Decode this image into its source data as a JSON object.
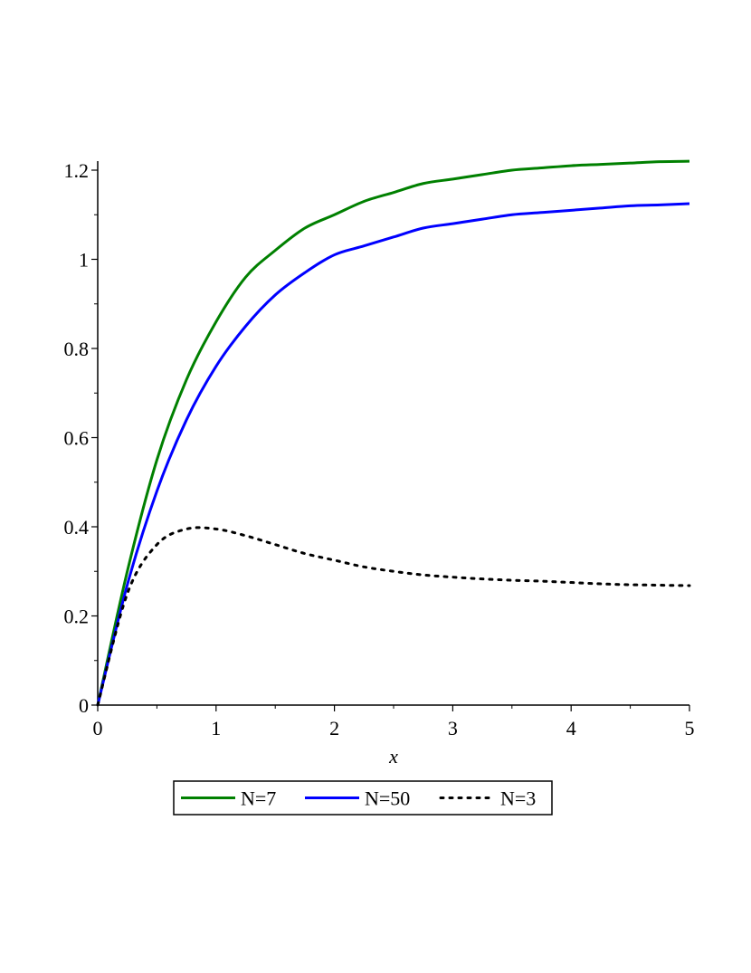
{
  "chart_data": {
    "type": "line",
    "title": "",
    "xlabel": "x",
    "ylabel": "",
    "xlim": [
      0,
      5
    ],
    "ylim": [
      0,
      1.2
    ],
    "x_ticks": [
      0,
      1,
      2,
      3,
      4,
      5
    ],
    "y_ticks": [
      0,
      0.2,
      0.4,
      0.6,
      0.8,
      1,
      1.2
    ],
    "x_tick_labels": [
      "0",
      "1",
      "2",
      "3",
      "4",
      "5"
    ],
    "y_tick_labels": [
      "0",
      "0.2",
      "0.4",
      "0.6",
      "0.8",
      "1",
      "1.2"
    ],
    "grid": false,
    "legend_position": "bottom",
    "x": [
      0,
      0.25,
      0.5,
      0.75,
      1,
      1.25,
      1.5,
      1.75,
      2,
      2.25,
      2.5,
      2.75,
      3,
      3.25,
      3.5,
      3.75,
      4,
      4.25,
      4.5,
      4.75,
      5
    ],
    "series": [
      {
        "name": "N=7",
        "color": "#008000",
        "style": "solid",
        "values": [
          0,
          0.3,
          0.55,
          0.73,
          0.86,
          0.96,
          1.02,
          1.07,
          1.1,
          1.13,
          1.15,
          1.17,
          1.18,
          1.19,
          1.2,
          1.205,
          1.21,
          1.213,
          1.216,
          1.219,
          1.22
        ]
      },
      {
        "name": "N=50",
        "color": "#0000ff",
        "style": "solid",
        "values": [
          0,
          0.27,
          0.48,
          0.64,
          0.76,
          0.85,
          0.92,
          0.97,
          1.01,
          1.03,
          1.05,
          1.07,
          1.08,
          1.09,
          1.1,
          1.105,
          1.11,
          1.115,
          1.12,
          1.122,
          1.125
        ]
      },
      {
        "name": "N=3",
        "color": "#000000",
        "style": "dotted",
        "values": [
          0,
          0.25,
          0.36,
          0.395,
          0.395,
          0.38,
          0.36,
          0.34,
          0.325,
          0.31,
          0.3,
          0.292,
          0.287,
          0.283,
          0.28,
          0.278,
          0.275,
          0.272,
          0.27,
          0.269,
          0.268
        ]
      }
    ]
  }
}
